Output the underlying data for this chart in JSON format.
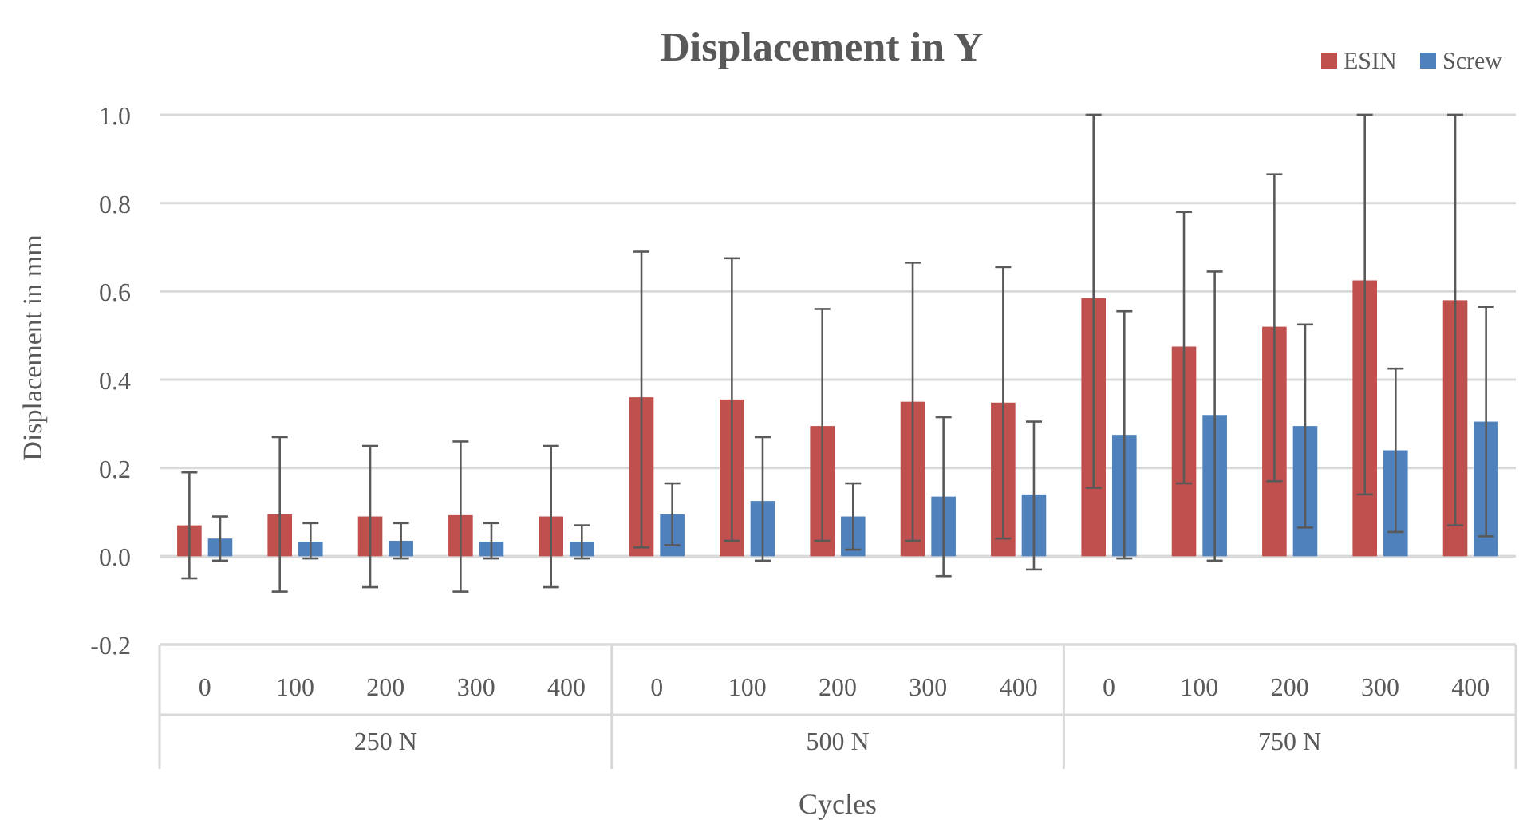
{
  "chart_data": {
    "type": "bar",
    "title": "Displacement in Y",
    "xlabel": "Cycles",
    "ylabel": "Displacement in mm",
    "categories": [
      "0",
      "100",
      "200",
      "300",
      "400",
      "0",
      "100",
      "200",
      "300",
      "400",
      "0",
      "100",
      "200",
      "300",
      "400"
    ],
    "annotations": [
      "250 N",
      "500 N",
      "750 N"
    ],
    "series": [
      {
        "name": "ESIN",
        "color": "#c0504d",
        "values": [
          0.07,
          0.095,
          0.09,
          0.093,
          0.09,
          0.36,
          0.355,
          0.295,
          0.35,
          0.348,
          0.585,
          0.475,
          0.52,
          0.625,
          0.58
        ],
        "errors": [
          [
            -0.05,
            0.19
          ],
          [
            -0.08,
            0.27
          ],
          [
            -0.07,
            0.25
          ],
          [
            -0.08,
            0.26
          ],
          [
            -0.07,
            0.25
          ],
          [
            0.02,
            0.69
          ],
          [
            0.035,
            0.675
          ],
          [
            0.035,
            0.56
          ],
          [
            0.035,
            0.665
          ],
          [
            0.04,
            0.655
          ],
          [
            0.155,
            1.0
          ],
          [
            0.165,
            0.78
          ],
          [
            0.17,
            0.865
          ],
          [
            0.14,
            1.0
          ],
          [
            0.07,
            1.0
          ]
        ]
      },
      {
        "name": "Screw",
        "color": "#4f81bd",
        "values": [
          0.04,
          0.033,
          0.035,
          0.033,
          0.033,
          0.095,
          0.125,
          0.09,
          0.135,
          0.14,
          0.275,
          0.32,
          0.295,
          0.24,
          0.305
        ],
        "errors": [
          [
            -0.01,
            0.09
          ],
          [
            -0.005,
            0.075
          ],
          [
            -0.005,
            0.075
          ],
          [
            -0.005,
            0.075
          ],
          [
            -0.005,
            0.07
          ],
          [
            0.025,
            0.165
          ],
          [
            -0.01,
            0.27
          ],
          [
            0.015,
            0.165
          ],
          [
            -0.045,
            0.315
          ],
          [
            -0.03,
            0.305
          ],
          [
            -0.005,
            0.555
          ],
          [
            -0.01,
            0.645
          ],
          [
            0.065,
            0.525
          ],
          [
            0.055,
            0.425
          ],
          [
            0.045,
            0.565
          ]
        ]
      }
    ],
    "ylim": [
      -0.2,
      1.0
    ],
    "yticks": [
      {
        "value": -0.2,
        "label": "-0.2"
      },
      {
        "value": 0,
        "label": "0.0"
      },
      {
        "value": 0.2,
        "label": "0.2"
      },
      {
        "value": 0.4,
        "label": "0.4"
      },
      {
        "value": 0.6,
        "label": "0.6"
      },
      {
        "value": 0.8,
        "label": "0.8"
      },
      {
        "value": 1,
        "label": "1.0"
      }
    ],
    "grid": "y",
    "legend": "top right"
  }
}
